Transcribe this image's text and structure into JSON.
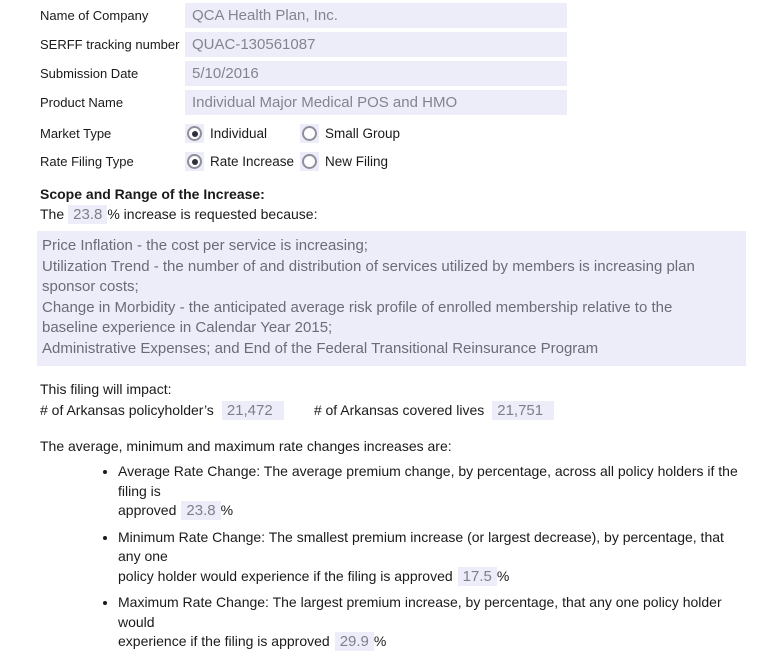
{
  "form": {
    "fields": [
      {
        "label": "Name of Company",
        "value": "QCA Health Plan, Inc."
      },
      {
        "label": "SERFF tracking number",
        "value": "QUAC-130561087"
      },
      {
        "label": "Submission Date",
        "value": "5/10/2016"
      },
      {
        "label": "Product Name",
        "value": "Individual Major Medical POS and HMO"
      }
    ],
    "radio_groups": [
      {
        "label": "Market Type",
        "options": [
          {
            "label": "Individual",
            "selected": true
          },
          {
            "label": "Small Group",
            "selected": false
          }
        ]
      },
      {
        "label": "Rate Filing Type",
        "options": [
          {
            "label": "Rate Increase",
            "selected": true
          },
          {
            "label": "New Filing",
            "selected": false
          }
        ]
      }
    ]
  },
  "scope": {
    "heading": "Scope and Range of the Increase:",
    "sentence_prefix": "The",
    "increase_value": "23.8",
    "percent_sign": "%",
    "sentence_suffix": " increase is requested because:",
    "reasons": [
      "Price Inflation - the cost per service is increasing;",
      "Utilization Trend - the number of and distribution of services utilized by members is increasing plan",
      "sponsor costs;",
      "Change in Morbidity - the anticipated average risk profile of enrolled membership relative to the",
      "baseline experience in Calendar Year 2015;",
      "Administrative Expenses; and End of the Federal Transitional Reinsurance Program"
    ]
  },
  "impact": {
    "intro": "This filing will impact:",
    "policyholders_label": "# of Arkansas policyholder’s",
    "policyholders_value": "21,472",
    "covered_lives_label": "# of Arkansas covered lives",
    "covered_lives_value": "21,751"
  },
  "rate_changes": {
    "intro": "The average, minimum and maximum rate changes increases are:",
    "items": [
      {
        "line1": "Average Rate Change: The average premium change, by percentage, across all policy holders if the filing is",
        "line2": "approved",
        "value": "23.8",
        "percent": "%"
      },
      {
        "line1": "Minimum Rate Change: The smallest premium increase (or largest decrease), by percentage, that any one",
        "line2": "policy holder would experience if the filing is approved",
        "value": "17.5",
        "percent": "%"
      },
      {
        "line1": "Maximum Rate Change: The largest premium increase, by percentage, that any one policy holder would",
        "line2": "experience if the filing is approved",
        "value": "29.9",
        "percent": "%"
      }
    ]
  }
}
